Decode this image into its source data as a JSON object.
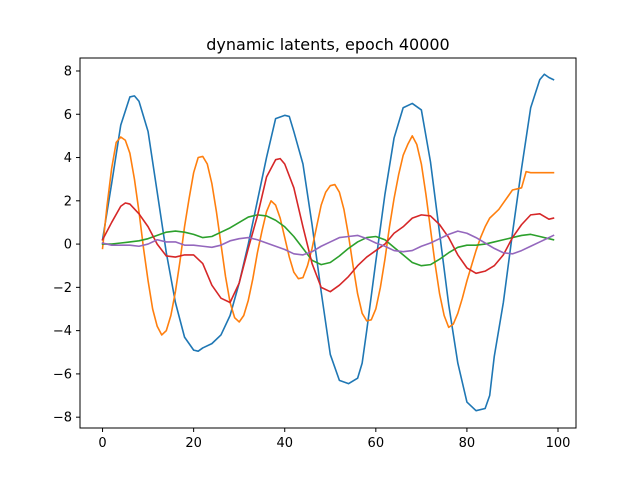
{
  "chart_data": {
    "type": "line",
    "title": "dynamic latents, epoch 40000",
    "xlabel": "",
    "ylabel": "",
    "xlim": [
      -4.95,
      103.95
    ],
    "ylim": [
      -8.5,
      8.6
    ],
    "xticks": [
      0,
      20,
      40,
      60,
      80,
      100
    ],
    "yticks": [
      -8,
      -6,
      -4,
      -2,
      0,
      2,
      4,
      6,
      8
    ],
    "grid": false,
    "legend": "none",
    "series": [
      {
        "color": "#1f77b4",
        "x": [
          0,
          2,
          4,
          6,
          7,
          8,
          10,
          12,
          14,
          16,
          18,
          20,
          21,
          22,
          24,
          26,
          28,
          30,
          32,
          34,
          36,
          38,
          40,
          41,
          42,
          44,
          46,
          48,
          50,
          52,
          54,
          56,
          57,
          58,
          60,
          62,
          64,
          66,
          68,
          70,
          72,
          74,
          76,
          78,
          80,
          82,
          84,
          85,
          86,
          88,
          90,
          92,
          94,
          96,
          97,
          98,
          99
        ],
        "y": [
          0.2,
          2.8,
          5.5,
          6.8,
          6.85,
          6.6,
          5.2,
          2.4,
          -0.4,
          -2.7,
          -4.3,
          -4.9,
          -4.95,
          -4.8,
          -4.6,
          -4.2,
          -3.3,
          -1.8,
          0,
          2,
          4,
          5.8,
          5.95,
          5.9,
          5.2,
          3.7,
          0.9,
          -2.2,
          -5.1,
          -6.3,
          -6.45,
          -6.2,
          -5.5,
          -4.0,
          -0.8,
          2.3,
          4.9,
          6.3,
          6.5,
          6.2,
          3.8,
          0.5,
          -2.8,
          -5.5,
          -7.3,
          -7.7,
          -7.6,
          -7.0,
          -5.2,
          -2.7,
          0.5,
          3.5,
          6.3,
          7.6,
          7.85,
          7.7,
          7.6
        ]
      },
      {
        "color": "#ff7f0e",
        "x": [
          0,
          1,
          2,
          3,
          4,
          5,
          6,
          7,
          8,
          9,
          10,
          11,
          12,
          13,
          14,
          15,
          16,
          17,
          18,
          19,
          20,
          21,
          22,
          23,
          24,
          25,
          26,
          27,
          28,
          29,
          30,
          31,
          32,
          33,
          34,
          35,
          36,
          37,
          38,
          39,
          40,
          41,
          42,
          43,
          44,
          45,
          46,
          47,
          48,
          49,
          50,
          51,
          52,
          53,
          54,
          55,
          56,
          57,
          58,
          59,
          60,
          61,
          62,
          63,
          64,
          65,
          66,
          67,
          68,
          69,
          70,
          71,
          72,
          73,
          74,
          75,
          76,
          77,
          78,
          79,
          80,
          81,
          82,
          83,
          84,
          85,
          86,
          87,
          88,
          89,
          90,
          91,
          92,
          93,
          94,
          95,
          96,
          97,
          98,
          99
        ],
        "y": [
          -0.2,
          1.8,
          3.5,
          4.7,
          4.95,
          4.8,
          4.2,
          3.0,
          1.5,
          -0.2,
          -1.7,
          -3.0,
          -3.8,
          -4.2,
          -4.0,
          -3.3,
          -2.2,
          -0.8,
          0.8,
          2.1,
          3.3,
          4.0,
          4.05,
          3.7,
          2.8,
          1.5,
          0,
          -1.5,
          -2.7,
          -3.4,
          -3.6,
          -3.3,
          -2.6,
          -1.6,
          -0.4,
          0.6,
          1.5,
          2.0,
          1.8,
          1.2,
          0.3,
          -0.6,
          -1.3,
          -1.6,
          -1.55,
          -1.0,
          -0.2,
          0.8,
          1.8,
          2.4,
          2.7,
          2.75,
          2.4,
          1.6,
          0.4,
          -1.0,
          -2.3,
          -3.2,
          -3.55,
          -3.5,
          -3.0,
          -2.0,
          -0.7,
          0.8,
          2.1,
          3.2,
          4.1,
          4.6,
          5.0,
          4.6,
          3.7,
          2.3,
          0.7,
          -0.9,
          -2.3,
          -3.3,
          -3.85,
          -3.7,
          -3.2,
          -2.5,
          -1.7,
          -1.0,
          -0.3,
          0.3,
          0.8,
          1.2,
          1.4,
          1.6,
          1.9,
          2.2,
          2.5,
          2.55,
          2.6,
          3.35,
          3.3,
          3.3,
          3.3,
          3.3,
          3.3,
          3.3
        ]
      },
      {
        "color": "#2ca02c",
        "x": [
          0,
          2,
          4,
          6,
          8,
          10,
          12,
          14,
          16,
          18,
          20,
          22,
          24,
          26,
          28,
          30,
          32,
          34,
          36,
          38,
          40,
          42,
          44,
          46,
          48,
          50,
          52,
          54,
          56,
          58,
          60,
          62,
          64,
          66,
          68,
          70,
          72,
          74,
          76,
          78,
          80,
          82,
          84,
          86,
          88,
          90,
          92,
          94,
          96,
          98,
          99
        ],
        "y": [
          0,
          0,
          0.05,
          0.1,
          0.15,
          0.25,
          0.4,
          0.55,
          0.6,
          0.55,
          0.45,
          0.3,
          0.35,
          0.55,
          0.75,
          1.0,
          1.25,
          1.35,
          1.3,
          1.1,
          0.8,
          0.35,
          -0.2,
          -0.75,
          -0.95,
          -0.85,
          -0.55,
          -0.2,
          0.1,
          0.3,
          0.35,
          0.2,
          -0.15,
          -0.5,
          -0.85,
          -1.0,
          -0.95,
          -0.7,
          -0.4,
          -0.15,
          -0.05,
          -0.05,
          0,
          0.1,
          0.2,
          0.3,
          0.4,
          0.45,
          0.35,
          0.25,
          0.2
        ]
      },
      {
        "color": "#d62728",
        "x": [
          0,
          2,
          4,
          5,
          6,
          8,
          10,
          12,
          14,
          16,
          18,
          20,
          22,
          24,
          26,
          28,
          30,
          32,
          34,
          36,
          38,
          39,
          40,
          42,
          44,
          46,
          48,
          50,
          52,
          54,
          56,
          58,
          60,
          62,
          64,
          66,
          68,
          70,
          72,
          74,
          76,
          78,
          80,
          82,
          84,
          86,
          88,
          90,
          92,
          94,
          96,
          98,
          99
        ],
        "y": [
          0.2,
          1.0,
          1.75,
          1.9,
          1.85,
          1.4,
          0.8,
          0,
          -0.55,
          -0.6,
          -0.5,
          -0.5,
          -0.9,
          -1.9,
          -2.5,
          -2.7,
          -1.8,
          -0.2,
          1.3,
          3.1,
          3.9,
          3.95,
          3.7,
          2.6,
          0.8,
          -0.9,
          -2.0,
          -2.2,
          -1.9,
          -1.5,
          -1.0,
          -0.6,
          -0.3,
          0,
          0.5,
          0.8,
          1.2,
          1.35,
          1.3,
          0.9,
          0.3,
          -0.5,
          -1.1,
          -1.35,
          -1.25,
          -1.0,
          -0.5,
          0.3,
          0.9,
          1.35,
          1.4,
          1.15,
          1.2
        ]
      },
      {
        "color": "#9467bd",
        "x": [
          0,
          2,
          4,
          6,
          8,
          10,
          12,
          14,
          16,
          18,
          20,
          22,
          24,
          26,
          28,
          30,
          32,
          34,
          36,
          38,
          40,
          42,
          44,
          46,
          48,
          50,
          52,
          54,
          56,
          58,
          60,
          62,
          64,
          66,
          68,
          70,
          72,
          74,
          76,
          78,
          80,
          82,
          84,
          86,
          88,
          90,
          92,
          94,
          96,
          98,
          99
        ],
        "y": [
          0.05,
          -0.05,
          -0.05,
          -0.05,
          -0.1,
          0,
          0.2,
          0.1,
          0.1,
          -0.05,
          -0.05,
          -0.1,
          -0.15,
          -0.05,
          0.15,
          0.25,
          0.3,
          0.2,
          0.05,
          -0.1,
          -0.25,
          -0.45,
          -0.5,
          -0.35,
          -0.1,
          0.1,
          0.3,
          0.35,
          0.4,
          0.25,
          0.05,
          -0.1,
          -0.3,
          -0.35,
          -0.3,
          -0.1,
          0.05,
          0.25,
          0.45,
          0.6,
          0.5,
          0.3,
          0.05,
          -0.2,
          -0.4,
          -0.45,
          -0.3,
          -0.1,
          0.1,
          0.3,
          0.4
        ]
      }
    ]
  }
}
